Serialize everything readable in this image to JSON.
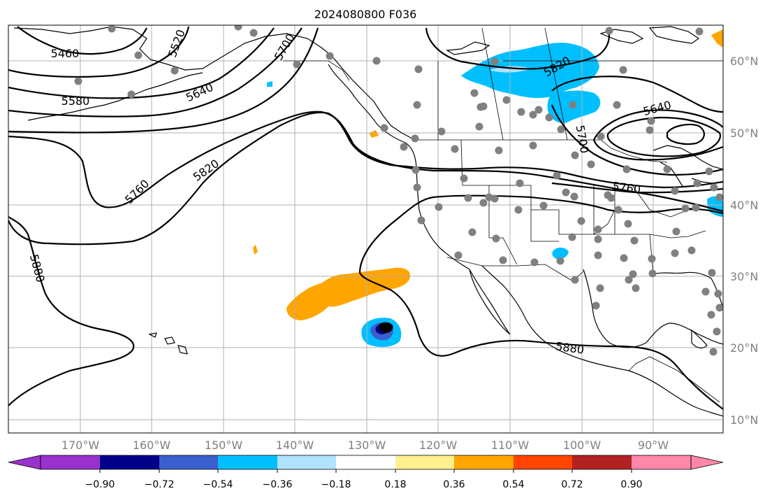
{
  "title": "2024080800 F036",
  "lat_labels": [
    "60°N",
    "50°N",
    "40°N",
    "30°N",
    "20°N",
    "10°N"
  ],
  "lon_labels": [
    "170°W",
    "160°W",
    "150°W",
    "140°W",
    "130°W",
    "120°W",
    "110°W",
    "100°W",
    "90°W"
  ],
  "contours": [
    {
      "value": "5460"
    },
    {
      "value": "5520"
    },
    {
      "value": "5580"
    },
    {
      "value": "5640"
    },
    {
      "value": "5700"
    },
    {
      "value": "5760"
    },
    {
      "value": "5820"
    },
    {
      "value": "5880"
    },
    {
      "value": "5820"
    },
    {
      "value": "5640"
    },
    {
      "value": "5760"
    },
    {
      "value": "5880"
    },
    {
      "value": "5700"
    }
  ],
  "colorbar": {
    "ticks": [
      "−0.90",
      "−0.72",
      "−0.54",
      "−0.36",
      "−0.18",
      "0.18",
      "0.36",
      "0.54",
      "0.72",
      "0.90"
    ],
    "colors": [
      "#9932cc",
      "#00008b",
      "#3a5fcd",
      "#00bfff",
      "#b0e2ff",
      "#ffffff",
      "#fff08f",
      "#ffa500",
      "#ff4500",
      "#b22222",
      "#ff88aa",
      "#ff88aa"
    ]
  },
  "legend_colors": {
    "cyan": "#00bfff",
    "light_blue": "#b0e2ff",
    "orange": "#ffa500",
    "royal_blue": "#3a5fcd",
    "station_gray": "#808080"
  }
}
